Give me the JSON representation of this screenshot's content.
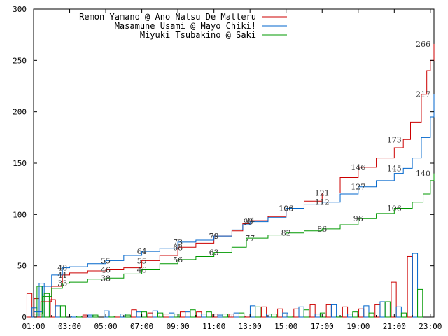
{
  "chart_data": {
    "type": "line",
    "title": "",
    "xlabel": "",
    "ylabel": "",
    "x_ticks": [
      "01:00",
      "03:00",
      "05:00",
      "07:00",
      "09:00",
      "11:00",
      "13:00",
      "15:00",
      "17:00",
      "19:00",
      "21:00",
      "23:00"
    ],
    "x_range_hours": [
      1,
      23.2
    ],
    "y_ticks": [
      0,
      50,
      100,
      150,
      200,
      250,
      300
    ],
    "ylim": [
      0,
      300
    ],
    "grid": false,
    "legend_position": "top-left",
    "series": [
      {
        "name": "Remon Yamano @ Ano Natsu De Matteru",
        "color": "#cc0000",
        "cumulative": [
          [
            1.0,
            0
          ],
          [
            1.4,
            15
          ],
          [
            2.0,
            30
          ],
          [
            2.6,
            41
          ],
          [
            3.0,
            43
          ],
          [
            4.0,
            45
          ],
          [
            5.0,
            46
          ],
          [
            6.0,
            48
          ],
          [
            7.0,
            55
          ],
          [
            8.0,
            60
          ],
          [
            9.0,
            68
          ],
          [
            10.0,
            72
          ],
          [
            11.0,
            79
          ],
          [
            12.0,
            84
          ],
          [
            12.6,
            91
          ],
          [
            13.0,
            94
          ],
          [
            14.0,
            98
          ],
          [
            15.0,
            106
          ],
          [
            16.0,
            113
          ],
          [
            17.0,
            121
          ],
          [
            18.0,
            136
          ],
          [
            19.0,
            146
          ],
          [
            20.0,
            155
          ],
          [
            21.0,
            165
          ],
          [
            21.5,
            173
          ],
          [
            21.9,
            190
          ],
          [
            22.5,
            217
          ],
          [
            22.8,
            240
          ],
          [
            23.0,
            250
          ],
          [
            23.2,
            266
          ]
        ],
        "hourly": [
          23,
          18,
          17,
          0,
          2,
          0,
          1,
          7,
          4,
          3,
          5,
          5,
          3,
          3,
          1,
          10,
          8,
          8,
          12,
          12,
          10,
          8,
          12,
          34,
          59
        ]
      },
      {
        "name": "Masamune Usami @ Mayo Chiki!",
        "color": "#0066cc",
        "cumulative": [
          [
            1.0,
            5
          ],
          [
            1.5,
            30
          ],
          [
            2.0,
            41
          ],
          [
            2.6,
            48
          ],
          [
            3.0,
            49
          ],
          [
            4.0,
            52
          ],
          [
            5.0,
            55
          ],
          [
            6.0,
            60
          ],
          [
            7.0,
            64
          ],
          [
            8.0,
            67
          ],
          [
            9.0,
            73
          ],
          [
            10.0,
            75
          ],
          [
            11.0,
            79
          ],
          [
            12.0,
            85
          ],
          [
            12.6,
            90
          ],
          [
            13.0,
            93
          ],
          [
            14.0,
            97
          ],
          [
            15.0,
            106
          ],
          [
            16.0,
            110
          ],
          [
            17.0,
            112
          ],
          [
            18.0,
            120
          ],
          [
            19.0,
            127
          ],
          [
            20.0,
            133
          ],
          [
            21.0,
            140
          ],
          [
            21.5,
            145
          ],
          [
            22.0,
            155
          ],
          [
            22.5,
            175
          ],
          [
            23.0,
            195
          ],
          [
            23.2,
            217
          ]
        ],
        "hourly": [
          9,
          33,
          11,
          1,
          2,
          6,
          3,
          5,
          6,
          4,
          5,
          3,
          2,
          4,
          11,
          3,
          4,
          10,
          3,
          12,
          3,
          11,
          15,
          10,
          62
        ]
      },
      {
        "name": "Miyuki Tsubakino @ Saki",
        "color": "#009900",
        "cumulative": [
          [
            1.0,
            3
          ],
          [
            1.5,
            20
          ],
          [
            2.0,
            28
          ],
          [
            2.6,
            33
          ],
          [
            3.0,
            34
          ],
          [
            4.0,
            37
          ],
          [
            5.0,
            38
          ],
          [
            6.0,
            42
          ],
          [
            7.0,
            46
          ],
          [
            8.0,
            52
          ],
          [
            9.0,
            56
          ],
          [
            10.0,
            59
          ],
          [
            11.0,
            63
          ],
          [
            12.0,
            68
          ],
          [
            12.8,
            77
          ],
          [
            14.0,
            80
          ],
          [
            15.0,
            82
          ],
          [
            16.0,
            84
          ],
          [
            17.0,
            86
          ],
          [
            18.0,
            90
          ],
          [
            19.0,
            96
          ],
          [
            20.0,
            101
          ],
          [
            21.0,
            106
          ],
          [
            22.0,
            112
          ],
          [
            22.6,
            120
          ],
          [
            23.0,
            133
          ],
          [
            23.2,
            140
          ]
        ],
        "hourly": [
          30,
          23,
          11,
          1,
          2,
          1,
          2,
          5,
          4,
          3,
          7,
          5,
          3,
          4,
          10,
          3,
          1,
          7,
          4,
          1,
          5,
          4,
          15,
          4,
          27
        ]
      }
    ],
    "annotations": [
      {
        "series": 0,
        "x": 2.6,
        "y": 41,
        "text": "41"
      },
      {
        "series": 0,
        "x": 5.0,
        "y": 46,
        "text": "46"
      },
      {
        "series": 0,
        "x": 7.0,
        "y": 55,
        "text": "55"
      },
      {
        "series": 0,
        "x": 9.0,
        "y": 68,
        "text": "68"
      },
      {
        "series": 0,
        "x": 11.0,
        "y": 79,
        "text": "79"
      },
      {
        "series": 0,
        "x": 13.0,
        "y": 94,
        "text": "94"
      },
      {
        "series": 0,
        "x": 15.0,
        "y": 106,
        "text": "106"
      },
      {
        "series": 0,
        "x": 17.0,
        "y": 121,
        "text": "121"
      },
      {
        "series": 0,
        "x": 19.0,
        "y": 146,
        "text": "146"
      },
      {
        "series": 0,
        "x": 21.0,
        "y": 173,
        "text": "173"
      },
      {
        "series": 0,
        "x": 22.6,
        "y": 217,
        "text": "217"
      },
      {
        "series": 0,
        "x": 22.6,
        "y": 266,
        "text": "266"
      },
      {
        "series": 1,
        "x": 2.6,
        "y": 48,
        "text": "48"
      },
      {
        "series": 1,
        "x": 5.0,
        "y": 55,
        "text": "55"
      },
      {
        "series": 1,
        "x": 7.0,
        "y": 64,
        "text": "64"
      },
      {
        "series": 1,
        "x": 9.0,
        "y": 73,
        "text": "73"
      },
      {
        "series": 1,
        "x": 11.0,
        "y": 79,
        "text": "79"
      },
      {
        "series": 1,
        "x": 12.9,
        "y": 93,
        "text": "93"
      },
      {
        "series": 1,
        "x": 15.0,
        "y": 106,
        "text": "106"
      },
      {
        "series": 1,
        "x": 17.0,
        "y": 112,
        "text": "112"
      },
      {
        "series": 1,
        "x": 19.0,
        "y": 127,
        "text": "127"
      },
      {
        "series": 1,
        "x": 21.0,
        "y": 145,
        "text": "145"
      },
      {
        "series": 2,
        "x": 2.6,
        "y": 33,
        "text": "33"
      },
      {
        "series": 2,
        "x": 5.0,
        "y": 38,
        "text": "38"
      },
      {
        "series": 2,
        "x": 7.0,
        "y": 46,
        "text": "46"
      },
      {
        "series": 2,
        "x": 9.0,
        "y": 56,
        "text": "56"
      },
      {
        "series": 2,
        "x": 11.0,
        "y": 63,
        "text": "63"
      },
      {
        "series": 2,
        "x": 13.0,
        "y": 77,
        "text": "77"
      },
      {
        "series": 2,
        "x": 15.0,
        "y": 82,
        "text": "82"
      },
      {
        "series": 2,
        "x": 17.0,
        "y": 86,
        "text": "86"
      },
      {
        "series": 2,
        "x": 19.0,
        "y": 96,
        "text": "96"
      },
      {
        "series": 2,
        "x": 21.0,
        "y": 106,
        "text": "106"
      },
      {
        "series": 2,
        "x": 22.6,
        "y": 140,
        "text": "140"
      }
    ]
  }
}
